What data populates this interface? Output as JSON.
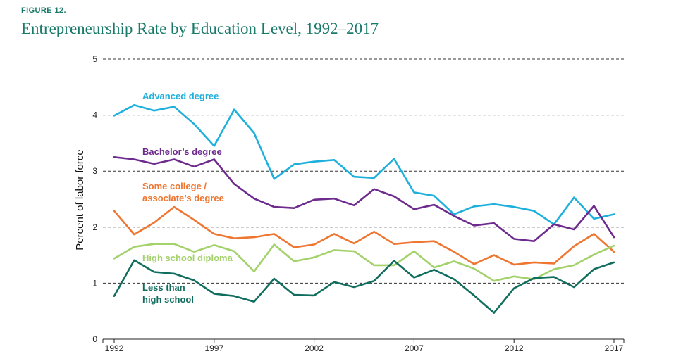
{
  "figure_label": "FIGURE 12.",
  "title": "Entrepreneurship Rate by Education Level, 1992–2017",
  "chart_data": {
    "type": "line",
    "title": "Entrepreneurship Rate by Education Level, 1992–2017",
    "xlabel": "",
    "ylabel": "Percent of labor force",
    "xlim": [
      1992,
      2017
    ],
    "ylim": [
      0,
      5
    ],
    "x_ticks": [
      1992,
      1997,
      2002,
      2007,
      2012,
      2017
    ],
    "y_ticks": [
      0,
      1,
      2,
      3,
      4,
      5
    ],
    "grid": "dashed horizontal",
    "x": [
      1992,
      1993,
      1994,
      1995,
      1996,
      1997,
      1998,
      1999,
      2000,
      2001,
      2002,
      2003,
      2004,
      2005,
      2006,
      2007,
      2008,
      2009,
      2010,
      2011,
      2012,
      2013,
      2014,
      2015,
      2016,
      2017
    ],
    "series": [
      {
        "name": "Advanced degree",
        "color": "#1eb0dd",
        "label_lines": [
          "Advanced degree"
        ],
        "values": [
          3.99,
          4.18,
          4.08,
          4.15,
          3.84,
          3.45,
          4.1,
          3.68,
          2.86,
          3.12,
          3.17,
          3.2,
          2.9,
          2.88,
          3.22,
          2.62,
          2.56,
          2.23,
          2.37,
          2.41,
          2.36,
          2.29,
          2.05,
          2.53,
          2.15,
          2.23
        ]
      },
      {
        "name": "Bachelor's degree",
        "color": "#6e2b8e",
        "label_lines": [
          "Bachelor’s degree"
        ],
        "values": [
          3.25,
          3.21,
          3.13,
          3.21,
          3.08,
          3.21,
          2.77,
          2.51,
          2.36,
          2.34,
          2.49,
          2.51,
          2.39,
          2.68,
          2.55,
          2.32,
          2.4,
          2.2,
          2.03,
          2.07,
          1.79,
          1.75,
          2.05,
          1.96,
          2.38,
          1.82
        ]
      },
      {
        "name": "Some college / associate's degree",
        "color": "#ee7631",
        "label_lines": [
          "Some college /",
          "associate’s degree"
        ],
        "values": [
          2.29,
          1.87,
          2.08,
          2.36,
          2.13,
          1.88,
          1.8,
          1.82,
          1.88,
          1.64,
          1.69,
          1.88,
          1.71,
          1.92,
          1.7,
          1.73,
          1.75,
          1.56,
          1.34,
          1.5,
          1.33,
          1.37,
          1.35,
          1.66,
          1.88,
          1.56
        ]
      },
      {
        "name": "High school diploma",
        "color": "#a3d16b",
        "label_lines": [
          "High school diploma"
        ],
        "values": [
          1.44,
          1.65,
          1.7,
          1.7,
          1.56,
          1.68,
          1.57,
          1.21,
          1.69,
          1.39,
          1.46,
          1.59,
          1.57,
          1.32,
          1.32,
          1.57,
          1.28,
          1.39,
          1.26,
          1.04,
          1.12,
          1.07,
          1.25,
          1.32,
          1.51,
          1.67
        ]
      },
      {
        "name": "Less than high school",
        "color": "#116e5e",
        "label_lines": [
          "Less than",
          "high school"
        ],
        "values": [
          0.77,
          1.41,
          1.2,
          1.17,
          1.05,
          0.81,
          0.77,
          0.67,
          1.08,
          0.79,
          0.78,
          1.02,
          0.93,
          1.04,
          1.4,
          1.1,
          1.24,
          1.07,
          0.78,
          0.47,
          0.91,
          1.09,
          1.11,
          0.93,
          1.25,
          1.37
        ]
      }
    ]
  }
}
